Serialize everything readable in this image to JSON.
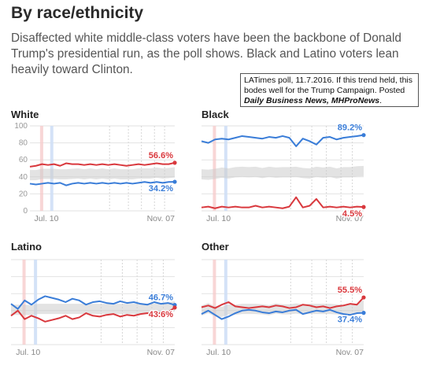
{
  "header": {
    "title": "By race/ethnicity",
    "subtitle": "Disaffected white middle-class voters have been the backbone of Donald Trump's presidential run, as the poll shows. Black and Latino voters lean heavily toward Clinton."
  },
  "note": {
    "text": "LATimes poll, 11.7.2016. If this trend held, this bodes well for the Trump Campaign. Posted ",
    "emphasis": "Daily Business News, MHProNews",
    "end": "."
  },
  "colors": {
    "trump": "#d9383d",
    "clinton": "#3a7dd8",
    "band": "#cccccc"
  },
  "chart_data": [
    {
      "type": "line",
      "title": "White",
      "ylim": [
        0,
        100
      ],
      "yticks": [
        0,
        20,
        40,
        60,
        80,
        100
      ],
      "x_start_label": "Jul. 10",
      "x_end_label": "Nov. 07",
      "series": [
        {
          "name": "",
          "party": "trump",
          "label": "56.6%",
          "values": [
            52,
            53,
            55,
            54,
            55,
            53,
            56,
            55,
            55,
            54,
            55,
            54,
            55,
            54,
            55,
            54,
            53,
            54,
            55,
            54,
            55,
            56,
            55,
            55,
            56.6
          ]
        },
        {
          "name": "",
          "party": "clinton",
          "label": "34.2%",
          "values": [
            32,
            31,
            32,
            33,
            32,
            33,
            30,
            32,
            33,
            32,
            33,
            32,
            33,
            32,
            33,
            32,
            33,
            32,
            33,
            34,
            33,
            34,
            33,
            34,
            34.2
          ]
        }
      ]
    },
    {
      "type": "line",
      "title": "Black",
      "ylim": [
        0,
        100
      ],
      "yticks": [],
      "x_start_label": "Jul. 10",
      "x_end_label": "Nov. 07",
      "series": [
        {
          "name": "",
          "party": "clinton",
          "label": "89.2%",
          "values": [
            82,
            80,
            84,
            85,
            84,
            86,
            88,
            87,
            86,
            85,
            87,
            86,
            88,
            86,
            76,
            85,
            82,
            78,
            86,
            87,
            84,
            86,
            87,
            88,
            89.2
          ]
        },
        {
          "name": "",
          "party": "trump",
          "label": "4.5%",
          "values": [
            4,
            5,
            3,
            5,
            4,
            5,
            4,
            4,
            6,
            4,
            5,
            4,
            3,
            5,
            16,
            4,
            6,
            14,
            4,
            5,
            4,
            5,
            4,
            5,
            4.5
          ]
        }
      ]
    },
    {
      "type": "line",
      "title": "Latino",
      "ylim": [
        0,
        100
      ],
      "yticks": [],
      "x_start_label": "Jul. 10",
      "x_end_label": "Nov. 07",
      "series": [
        {
          "name": "",
          "party": "clinton",
          "label": "46.7%",
          "values": [
            48,
            42,
            52,
            47,
            53,
            57,
            55,
            53,
            50,
            54,
            52,
            47,
            50,
            51,
            49,
            48,
            51,
            49,
            50,
            48,
            47,
            50,
            48,
            49,
            46.7
          ]
        },
        {
          "name": "",
          "party": "trump",
          "label": "43.6%",
          "values": [
            34,
            40,
            30,
            34,
            31,
            27,
            29,
            31,
            34,
            30,
            32,
            37,
            34,
            33,
            35,
            36,
            33,
            35,
            34,
            36,
            37,
            34,
            38,
            38,
            43.6
          ]
        }
      ]
    },
    {
      "type": "line",
      "title": "Other",
      "ylim": [
        0,
        100
      ],
      "yticks": [],
      "x_start_label": "Jul. 10",
      "x_end_label": "Nov. 07",
      "series": [
        {
          "name": "",
          "party": "trump",
          "label": "55.5%",
          "values": [
            44,
            46,
            43,
            47,
            50,
            45,
            44,
            43,
            44,
            45,
            44,
            46,
            45,
            43,
            44,
            47,
            46,
            44,
            45,
            43,
            45,
            46,
            48,
            47,
            55.5
          ]
        },
        {
          "name": "",
          "party": "clinton",
          "label": "37.4%",
          "values": [
            36,
            40,
            35,
            30,
            33,
            37,
            40,
            41,
            40,
            38,
            37,
            39,
            38,
            40,
            41,
            36,
            38,
            40,
            39,
            41,
            38,
            36,
            35,
            37,
            37.4
          ]
        }
      ]
    }
  ]
}
